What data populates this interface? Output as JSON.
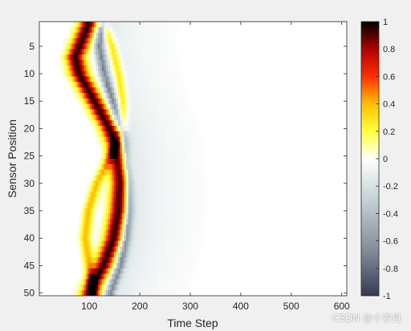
{
  "chart_data": {
    "type": "heatmap",
    "xlabel": "Time Step",
    "ylabel": "Sensor Position",
    "x_ticks": [
      100,
      200,
      300,
      400,
      500,
      600
    ],
    "y_ticks": [
      5,
      10,
      15,
      20,
      25,
      30,
      35,
      40,
      45,
      50
    ],
    "xlim": [
      1,
      610
    ],
    "ylim": [
      0.5,
      50.5
    ],
    "y_reversed": true,
    "rows": 50,
    "colormap": "hot-cold diverging (black-red-yellow-white-gray-navy)",
    "colorbar": {
      "range": [
        -1,
        1
      ],
      "ticks": [
        1,
        0.8,
        0.6,
        0.4,
        0.2,
        0,
        -0.2,
        -0.4,
        -0.6,
        -0.8,
        -1
      ]
    },
    "description_peaks": {
      "positive_front_center": [
        [
          1,
          98
        ],
        [
          7,
          72
        ],
        [
          10,
          80
        ],
        [
          15,
          110
        ],
        [
          20,
          140
        ],
        [
          23,
          153
        ],
        [
          26,
          158
        ],
        [
          30,
          162
        ],
        [
          35,
          158
        ],
        [
          40,
          148
        ],
        [
          45,
          128
        ],
        [
          48,
          110
        ],
        [
          50,
          102
        ]
      ],
      "negative_front_center": [
        [
          1,
          124
        ],
        [
          5,
          118
        ],
        [
          10,
          128
        ],
        [
          15,
          145
        ],
        [
          20,
          162
        ],
        [
          23,
          170
        ],
        [
          26,
          172
        ],
        [
          30,
          178
        ],
        [
          35,
          178
        ],
        [
          40,
          172
        ],
        [
          45,
          160
        ],
        [
          48,
          148
        ],
        [
          50,
          140
        ]
      ],
      "second_positive_front_center": [
        [
          1,
          128
        ],
        [
          5,
          145
        ],
        [
          10,
          158
        ],
        [
          15,
          166
        ],
        [
          20,
          165
        ],
        [
          25,
          142
        ],
        [
          30,
          115
        ],
        [
          35,
          98
        ],
        [
          40,
          92
        ],
        [
          45,
          100
        ],
        [
          50,
          108
        ]
      ]
    }
  },
  "watermark": "CSDN @十汐月"
}
